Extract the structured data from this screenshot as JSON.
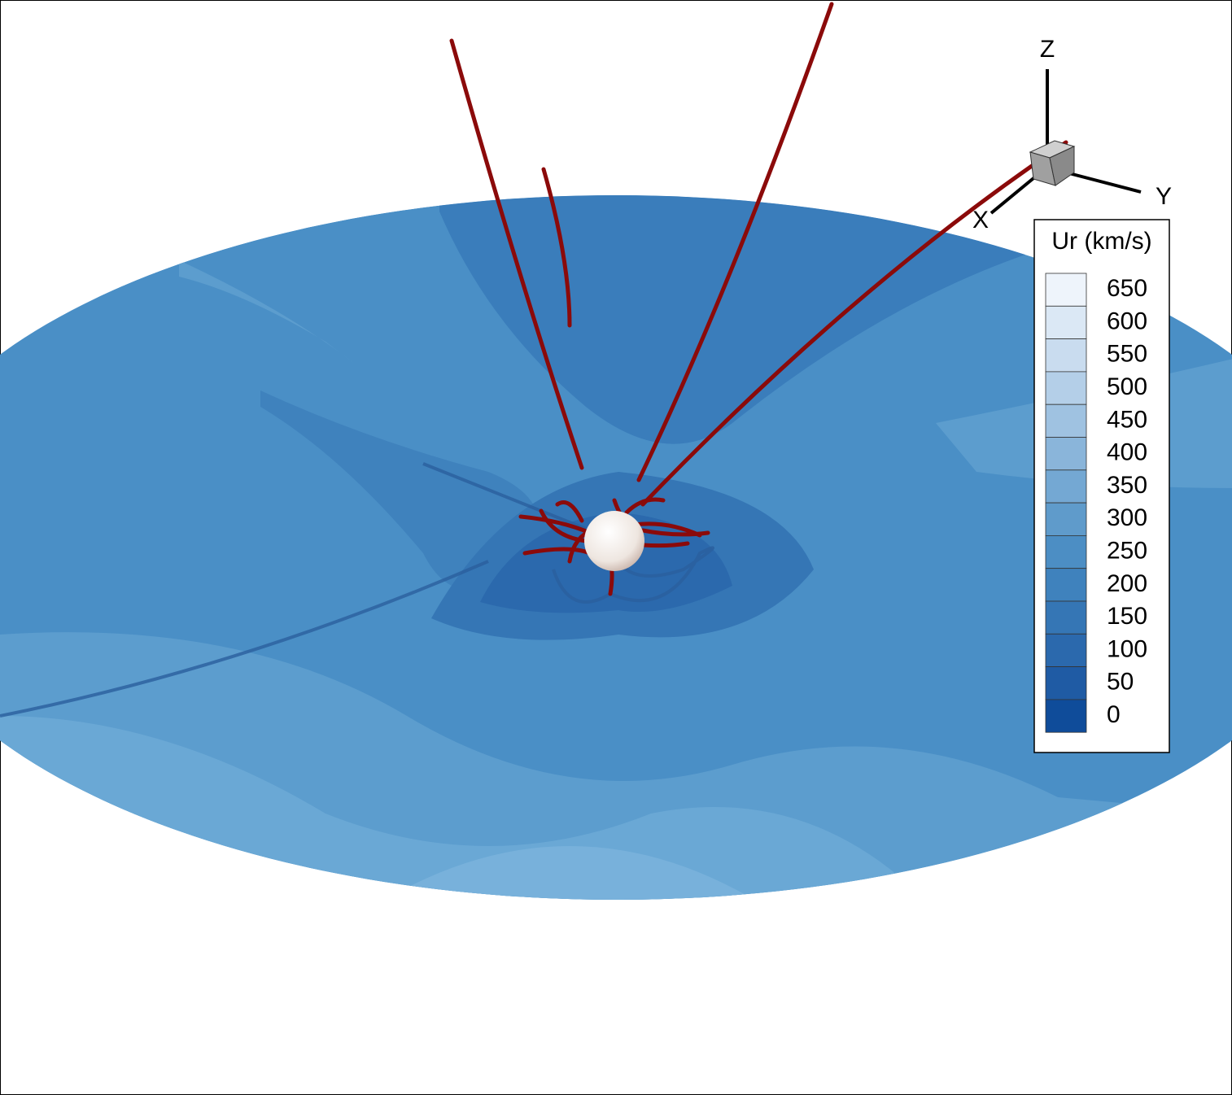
{
  "axes": {
    "z": "Z",
    "y": "Y",
    "x": "X"
  },
  "legend": {
    "title": "Ur (km/s)",
    "levels": [
      {
        "label": "650",
        "color": "#eef4fb"
      },
      {
        "label": "600",
        "color": "#dbe8f5"
      },
      {
        "label": "550",
        "color": "#c9dcef"
      },
      {
        "label": "500",
        "color": "#b4cfe8"
      },
      {
        "label": "450",
        "color": "#9fc2e1"
      },
      {
        "label": "400",
        "color": "#8ab5da"
      },
      {
        "label": "350",
        "color": "#74a8d3"
      },
      {
        "label": "300",
        "color": "#5f9bcb"
      },
      {
        "label": "250",
        "color": "#4c8ec4"
      },
      {
        "label": "200",
        "color": "#3f82bd"
      },
      {
        "label": "150",
        "color": "#3576b5"
      },
      {
        "label": "100",
        "color": "#2b69ad"
      },
      {
        "label": "50",
        "color": "#1f5ba4"
      },
      {
        "label": "0",
        "color": "#0f4c9a"
      }
    ]
  }
}
